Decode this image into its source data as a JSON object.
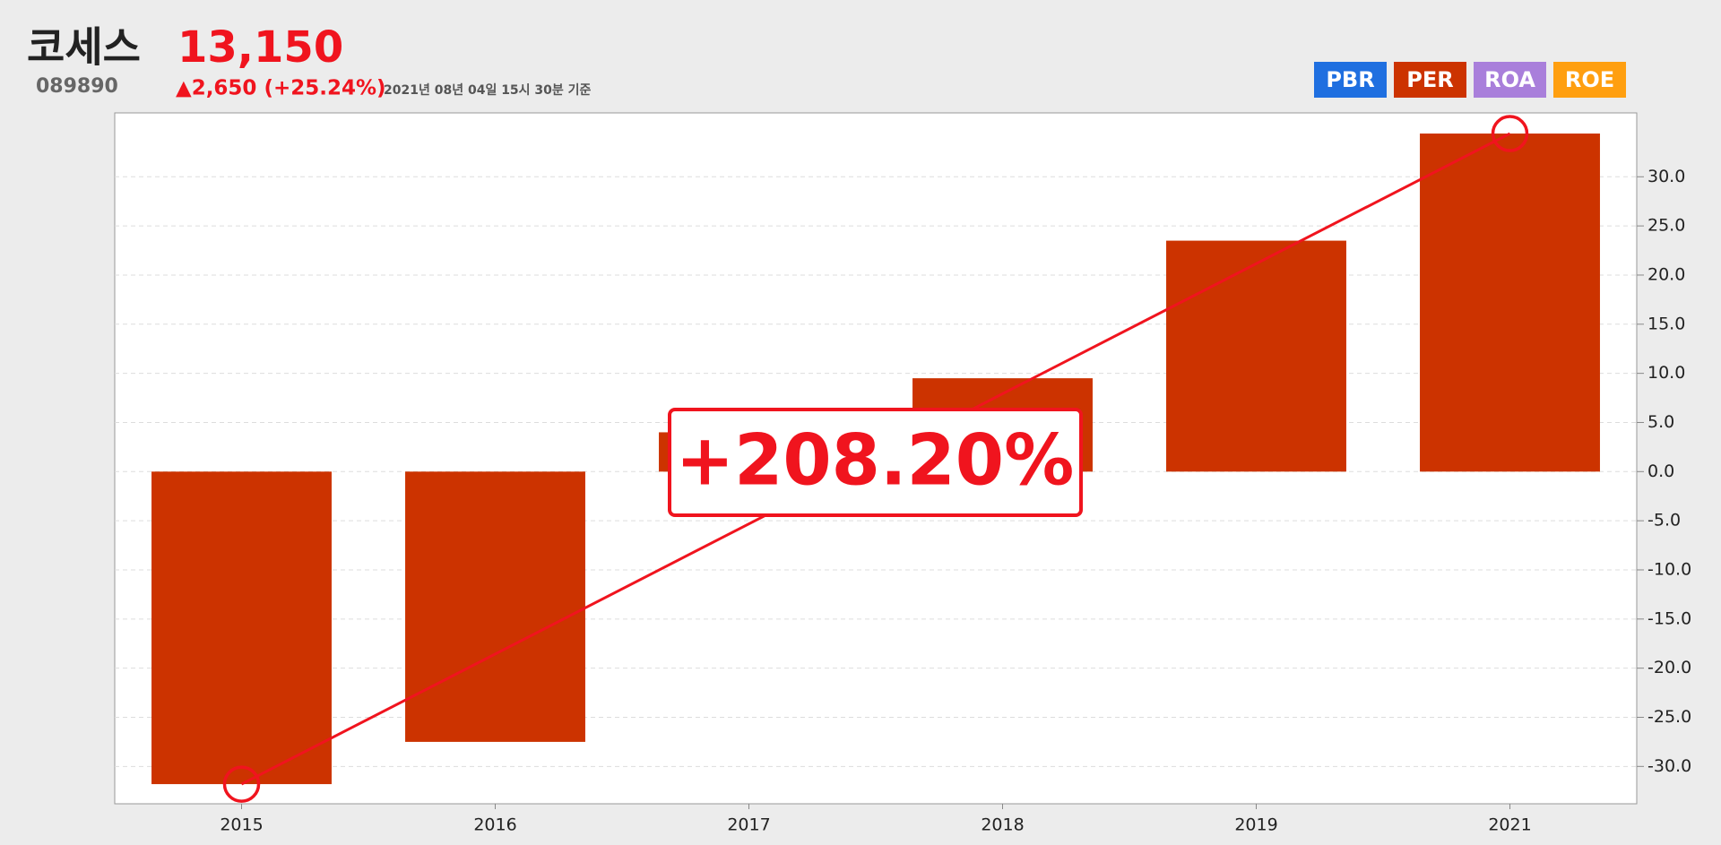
{
  "header": {
    "name": "코세스",
    "code": "089890",
    "price": "13,150",
    "change": "▲2,650 (+25.24%)",
    "timestamp": "2021년 08년 04일 15시 30분 기준"
  },
  "buttons": [
    {
      "label": "PBR",
      "color": "#1f6fe0"
    },
    {
      "label": "PER",
      "color": "#cc3300"
    },
    {
      "label": "ROA",
      "color": "#a97fdb"
    },
    {
      "label": "ROE",
      "color": "#ff9f10"
    }
  ],
  "chart_data": {
    "type": "bar",
    "categories": [
      "2015",
      "2016",
      "2017",
      "2018",
      "2019",
      "2021"
    ],
    "series": [
      {
        "name": "PER",
        "color": "#cc3300",
        "values": [
          -31.8,
          -27.5,
          4.0,
          9.5,
          23.5,
          34.4
        ]
      }
    ],
    "ylim": [
      -33.8,
      36.5
    ],
    "yticks": [
      {
        "value": -30,
        "label": "-30.0"
      },
      {
        "value": -25,
        "label": "-25.0"
      },
      {
        "value": -20,
        "label": "-20.0"
      },
      {
        "value": -15,
        "label": "-15.0"
      },
      {
        "value": -10,
        "label": "-10.0"
      },
      {
        "value": -5,
        "label": "-5.0"
      },
      {
        "value": 0,
        "label": "0.0"
      },
      {
        "value": 5,
        "label": "5.0"
      },
      {
        "value": 10,
        "label": "10.0"
      },
      {
        "value": 15,
        "label": "15.0"
      },
      {
        "value": 20,
        "label": "20.0"
      },
      {
        "value": 25,
        "label": "25.0"
      },
      {
        "value": 30,
        "label": "30.0"
      }
    ],
    "grid": true,
    "annotation": "+208.20%"
  }
}
